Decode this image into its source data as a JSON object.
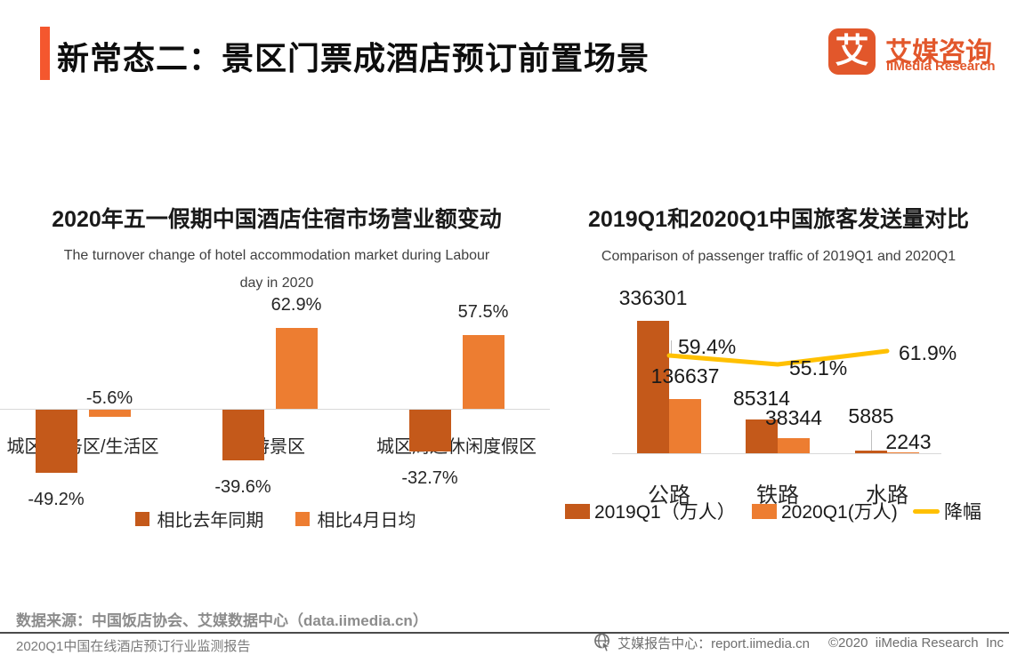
{
  "header": {
    "title": "新常态二：景区门票成酒店预订前置场景"
  },
  "brand": {
    "logo_glyph": "艾",
    "name_cn": "艾媒咨询",
    "name_en": "iiMedia Research",
    "color": "#E2572B"
  },
  "chart_data": [
    {
      "type": "bar",
      "title": "2020年五一假期中国酒店住宿市场营业额变动",
      "subtitle_lines": [
        "The turnover change of hotel accommodation market during Labour",
        "day in 2020"
      ],
      "categories": [
        "城区/商务区/生活区",
        "旅游景区",
        "城区周边休闲度假区"
      ],
      "series": [
        {
          "name": "相比去年同期",
          "color": "#C4591A",
          "values": [
            -49.2,
            -39.6,
            -32.7
          ]
        },
        {
          "name": "相比4月日均",
          "color": "#ED7D31",
          "values": [
            -5.6,
            62.9,
            57.5
          ]
        }
      ],
      "value_suffix": "%",
      "axis_color": "#D9D9D9",
      "legend_position": "bottom",
      "grid": false
    },
    {
      "type": "bar+line",
      "title": "2019Q1和2020Q1中国旅客发送量对比",
      "subtitle_lines": [
        "Comparison of passenger traffic of 2019Q1 and 2020Q1"
      ],
      "categories": [
        "公路",
        "铁路",
        "水路"
      ],
      "series": [
        {
          "name": "2019Q1（万人）",
          "color": "#C4591A",
          "values": [
            336301,
            85314,
            5885
          ]
        },
        {
          "name": "2020Q1(万人)",
          "color": "#ED7D31",
          "values": [
            136637,
            38344,
            2243
          ]
        }
      ],
      "line_series": {
        "name": "降幅",
        "color": "#FFC000",
        "values": [
          59.4,
          55.1,
          61.9
        ],
        "value_suffix": "%"
      },
      "axis_color": "#D9D9D9",
      "legend_position": "bottom",
      "grid": false
    }
  ],
  "footer": {
    "source": "数据来源：中国饭店协会、艾媒数据中心（data.iimedia.cn）",
    "report_title": "2020Q1中国在线酒店预订行业监测报告",
    "report_center": "艾媒报告中心：report.iimedia.cn",
    "copyright": "©2020  iiMedia Research  Inc"
  }
}
